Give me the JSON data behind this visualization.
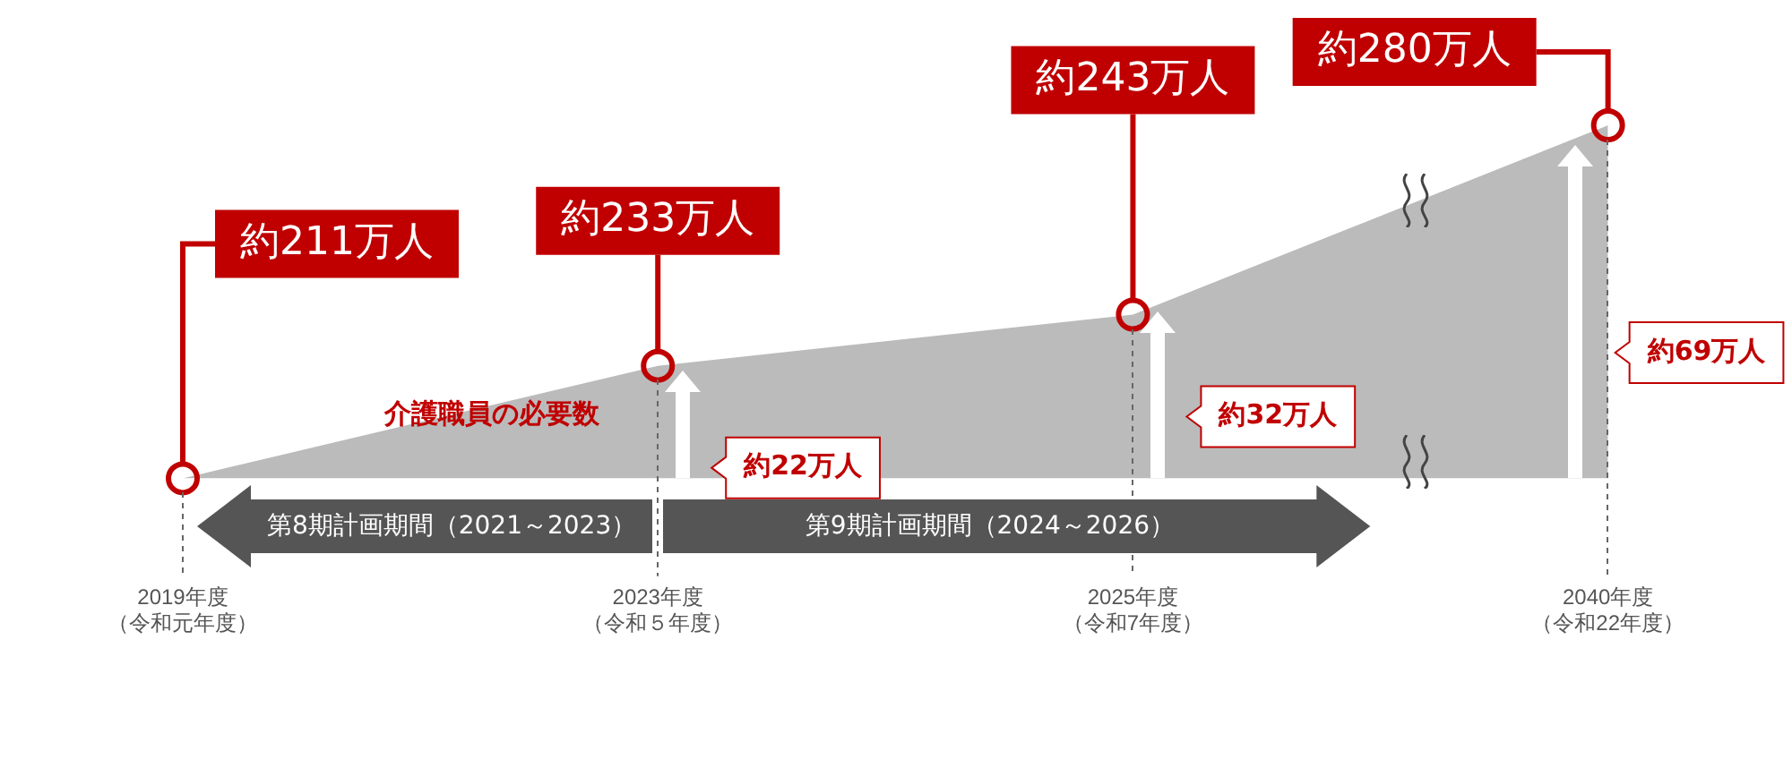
{
  "chart_data": {
    "type": "area",
    "categories": [
      "2019年度（令和元年度）",
      "2023年度（令和５年度）",
      "2025年度（令和7年度）",
      "2040年度（令和22年度）"
    ],
    "series": [
      {
        "color": "#bbbbbb",
        "values": [
          211,
          233,
          243,
          280
        ],
        "value_labels": [
          "約211万人",
          "約233万人",
          "約243万人",
          "約280万人"
        ]
      }
    ],
    "marker": "circle",
    "legend": false,
    "annotations": [
      "介護職員の必要数",
      "第8期計画期間（2021～2023）",
      "第9期計画期間（2024～2026）",
      "約22万人",
      "約32万人",
      "約69万人"
    ]
  }
}
